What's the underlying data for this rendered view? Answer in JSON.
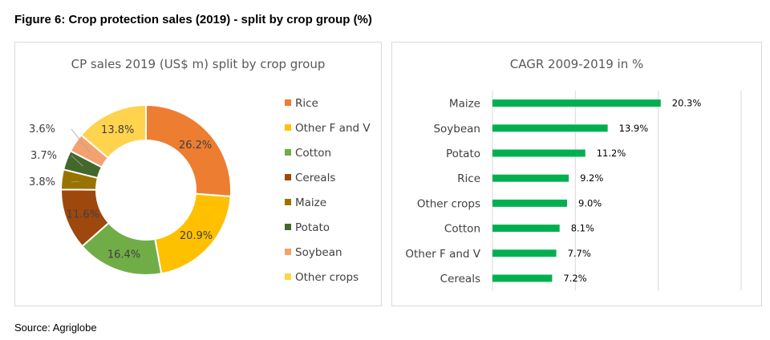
{
  "figure": {
    "title": "Figure 6: Crop protection sales (2019) - split by crop group (%)",
    "source": "Source: Agriglobe"
  },
  "chart_data": [
    {
      "type": "pie",
      "title": "CP sales 2019 (US$ m) split by crop group",
      "donut": true,
      "legend_position": "right",
      "unit": "%",
      "slices": [
        {
          "label": "Rice",
          "value": 26.2,
          "display": "26.2%",
          "color": "#ED7D31"
        },
        {
          "label": "Other F and V",
          "value": 20.9,
          "display": "20.9%",
          "color": "#FFC000"
        },
        {
          "label": "Cotton",
          "value": 16.4,
          "display": "16.4%",
          "color": "#70AD47"
        },
        {
          "label": "Cereals",
          "value": 11.6,
          "display": "11.6%",
          "color": "#9E480E"
        },
        {
          "label": "Maize",
          "value": 3.8,
          "display": "3.8%",
          "color": "#997300"
        },
        {
          "label": "Potato",
          "value": 3.7,
          "display": "3.7%",
          "color": "#43682B"
        },
        {
          "label": "Soybean",
          "value": 3.6,
          "display": "3.6%",
          "color": "#F4A170"
        },
        {
          "label": "Other crops",
          "value": 13.8,
          "display": "13.8%",
          "color": "#FFD34D"
        }
      ]
    },
    {
      "type": "bar",
      "orientation": "horizontal",
      "title": "CAGR 2009-2019 in %",
      "grid": true,
      "bar_color": "#00B050",
      "xlim": [
        0,
        30
      ],
      "categories": [
        "Maize",
        "Soybean",
        "Potato",
        "Rice",
        "Other crops",
        "Cotton",
        "Other F and V",
        "Cereals"
      ],
      "values": [
        20.3,
        13.9,
        11.2,
        9.2,
        9.0,
        8.1,
        7.7,
        7.2
      ],
      "data_labels": [
        "20.3%",
        "13.9%",
        "11.2%",
        "9.2%",
        "9.0%",
        "8.1%",
        "7.7%",
        "7.2%"
      ]
    }
  ]
}
